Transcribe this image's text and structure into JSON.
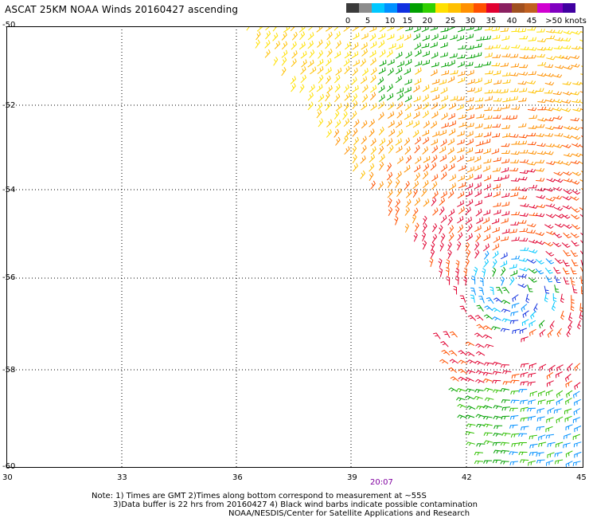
{
  "title": "ASCAT 25KM NOAA Winds 20160427 ascending",
  "legend": {
    "unit": "knots",
    "ticks": [
      "0",
      "5",
      "10",
      "15",
      "20",
      "25",
      "30",
      "35",
      "40",
      "45",
      ">50 knots"
    ],
    "colors": [
      "#3a3a3a",
      "#8c8c8c",
      "#00c8ff",
      "#0090ff",
      "#1030e0",
      "#00a000",
      "#30d000",
      "#ffe000",
      "#ffc000",
      "#ff9000",
      "#ff5000",
      "#e00030",
      "#8a2060",
      "#a05020",
      "#c06020",
      "#d000d0",
      "#8000c0",
      "#4000a0"
    ]
  },
  "map": {
    "x_ticks": [
      "30",
      "33",
      "36",
      "39",
      "42",
      "45"
    ],
    "y_ticks": [
      "-50",
      "-52",
      "-54",
      "-56",
      "-58",
      "-60"
    ],
    "pass_time": "20:07"
  },
  "notes": [
    "Note: 1) Times are GMT 2)Times along bottom correspond to measurement at ~55S",
    "3)Data buffer is 22 hrs from 20160427 4) Black wind barbs indicate possible contamination",
    "NOAA/NESDIS/Center for Satellite Applications and Research"
  ]
}
